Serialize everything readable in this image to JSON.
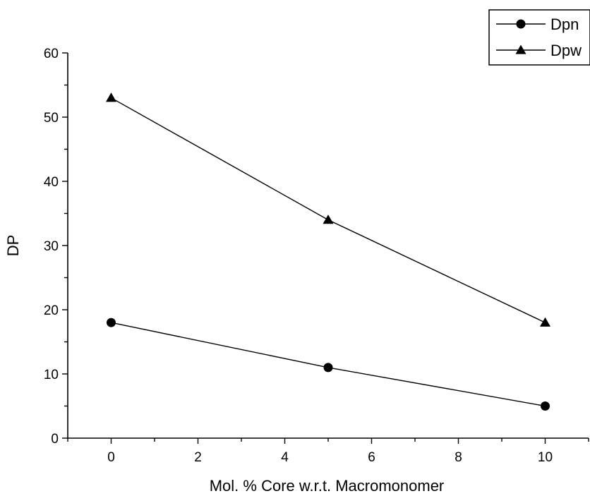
{
  "chart_data": {
    "type": "line",
    "xlabel": "Mol. % Core w.r.t. Macromonomer",
    "ylabel": "DP",
    "xlim": [
      -1,
      11
    ],
    "ylim": [
      0,
      60
    ],
    "x_ticks": [
      "0",
      "2",
      "4",
      "6",
      "8",
      "10"
    ],
    "y_ticks": [
      "0",
      "10",
      "20",
      "30",
      "40",
      "50",
      "60"
    ],
    "grid": false,
    "legend_position": "top-right",
    "series": [
      {
        "name": "Dpn",
        "marker": "circle",
        "x": [
          0,
          5,
          10
        ],
        "y": [
          18,
          11,
          5
        ]
      },
      {
        "name": "Dpw",
        "marker": "triangle",
        "x": [
          0,
          5,
          10
        ],
        "y": [
          53,
          34,
          18
        ]
      }
    ]
  }
}
